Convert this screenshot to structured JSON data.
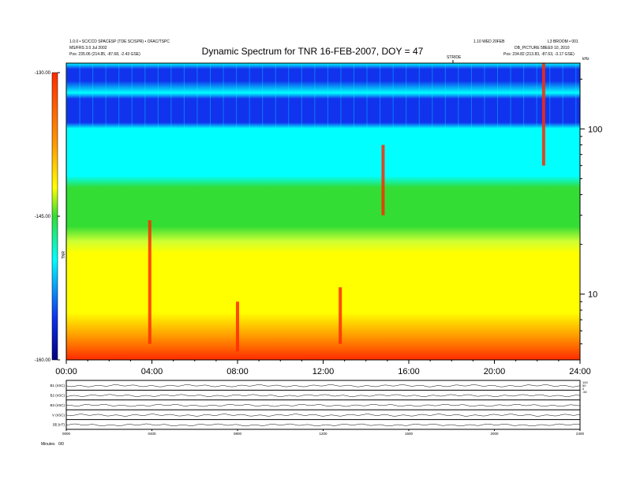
{
  "header": {
    "left_line1": "1.0.0 • SC/CCD SPACESP (TDE SC/SPR) • OFAC/TSPC",
    "left_line2": "MS/FRS 3.0 Jul 2002",
    "left_line3": "Pos:   235.06 (214.85, -87.68, -2.43 GSE)",
    "right_line1": "1.10 WED 20FEB",
    "right_line2": "L3 BROOM • 001",
    "right_line3": "DB_PICTURE 5BEE9 10, 2010",
    "right_line4": "Pos:   234.82 (213.83, -87.63, -3.17 GSE)",
    "marker_label": "STRIDE"
  },
  "colorbar": {
    "ticks": [
      "-130.00",
      "-145.00",
      "-160.00"
    ],
    "label": "TNR"
  },
  "panel_labels": {
    "left": [
      "B1 (nSC)",
      "B2 (nSC)",
      "B3 (nSC)",
      "V (nSC)",
      "|B| (nT)"
    ],
    "right_top": [
      "100",
      "50",
      "0",
      "-50"
    ],
    "footer_left": "Minutes",
    "footer_right": "0/0"
  },
  "chart_data": {
    "type": "heatmap",
    "title": "Dynamic Spectrum for TNR 16-FEB-2007, DOY = 47",
    "xlabel": "",
    "ylabel": "",
    "x_ticks": [
      "00:00",
      "04:00",
      "08:00",
      "12:00",
      "16:00",
      "20:00",
      "24:00"
    ],
    "x_range": [
      0,
      24
    ],
    "y_ticks": [
      "100",
      "10"
    ],
    "y_unit": "kHz",
    "y_scale": "log",
    "y_range": [
      4,
      250
    ],
    "color_scale": "jet",
    "colorbar_range": [
      -160,
      -130
    ],
    "colors": {
      "red": "#ff2a00",
      "orange": "#ff9a00",
      "yellow": "#ffff00",
      "green": "#33dd33",
      "cyan": "#00ffff",
      "blue": "#1133ee",
      "navy": "#000080"
    },
    "bursts": [
      {
        "hour": 3.9,
        "freq_min": 5,
        "freq_max": 28
      },
      {
        "hour": 8.0,
        "freq_min": 4.5,
        "freq_max": 9
      },
      {
        "hour": 12.8,
        "freq_min": 5,
        "freq_max": 11
      },
      {
        "hour": 14.8,
        "freq_min": 30,
        "freq_max": 80
      },
      {
        "hour": 22.3,
        "freq_min": 60,
        "freq_max": 250
      }
    ],
    "small_panels": {
      "x_ticks": [
        "0000",
        "0400",
        "0800",
        "1200",
        "1600",
        "2000",
        "2400"
      ],
      "rows": [
        "B1 (nSC)",
        "B2 (nSC)",
        "B3 (nSC)",
        "V (nSC)",
        "|B| (nT)"
      ]
    }
  }
}
